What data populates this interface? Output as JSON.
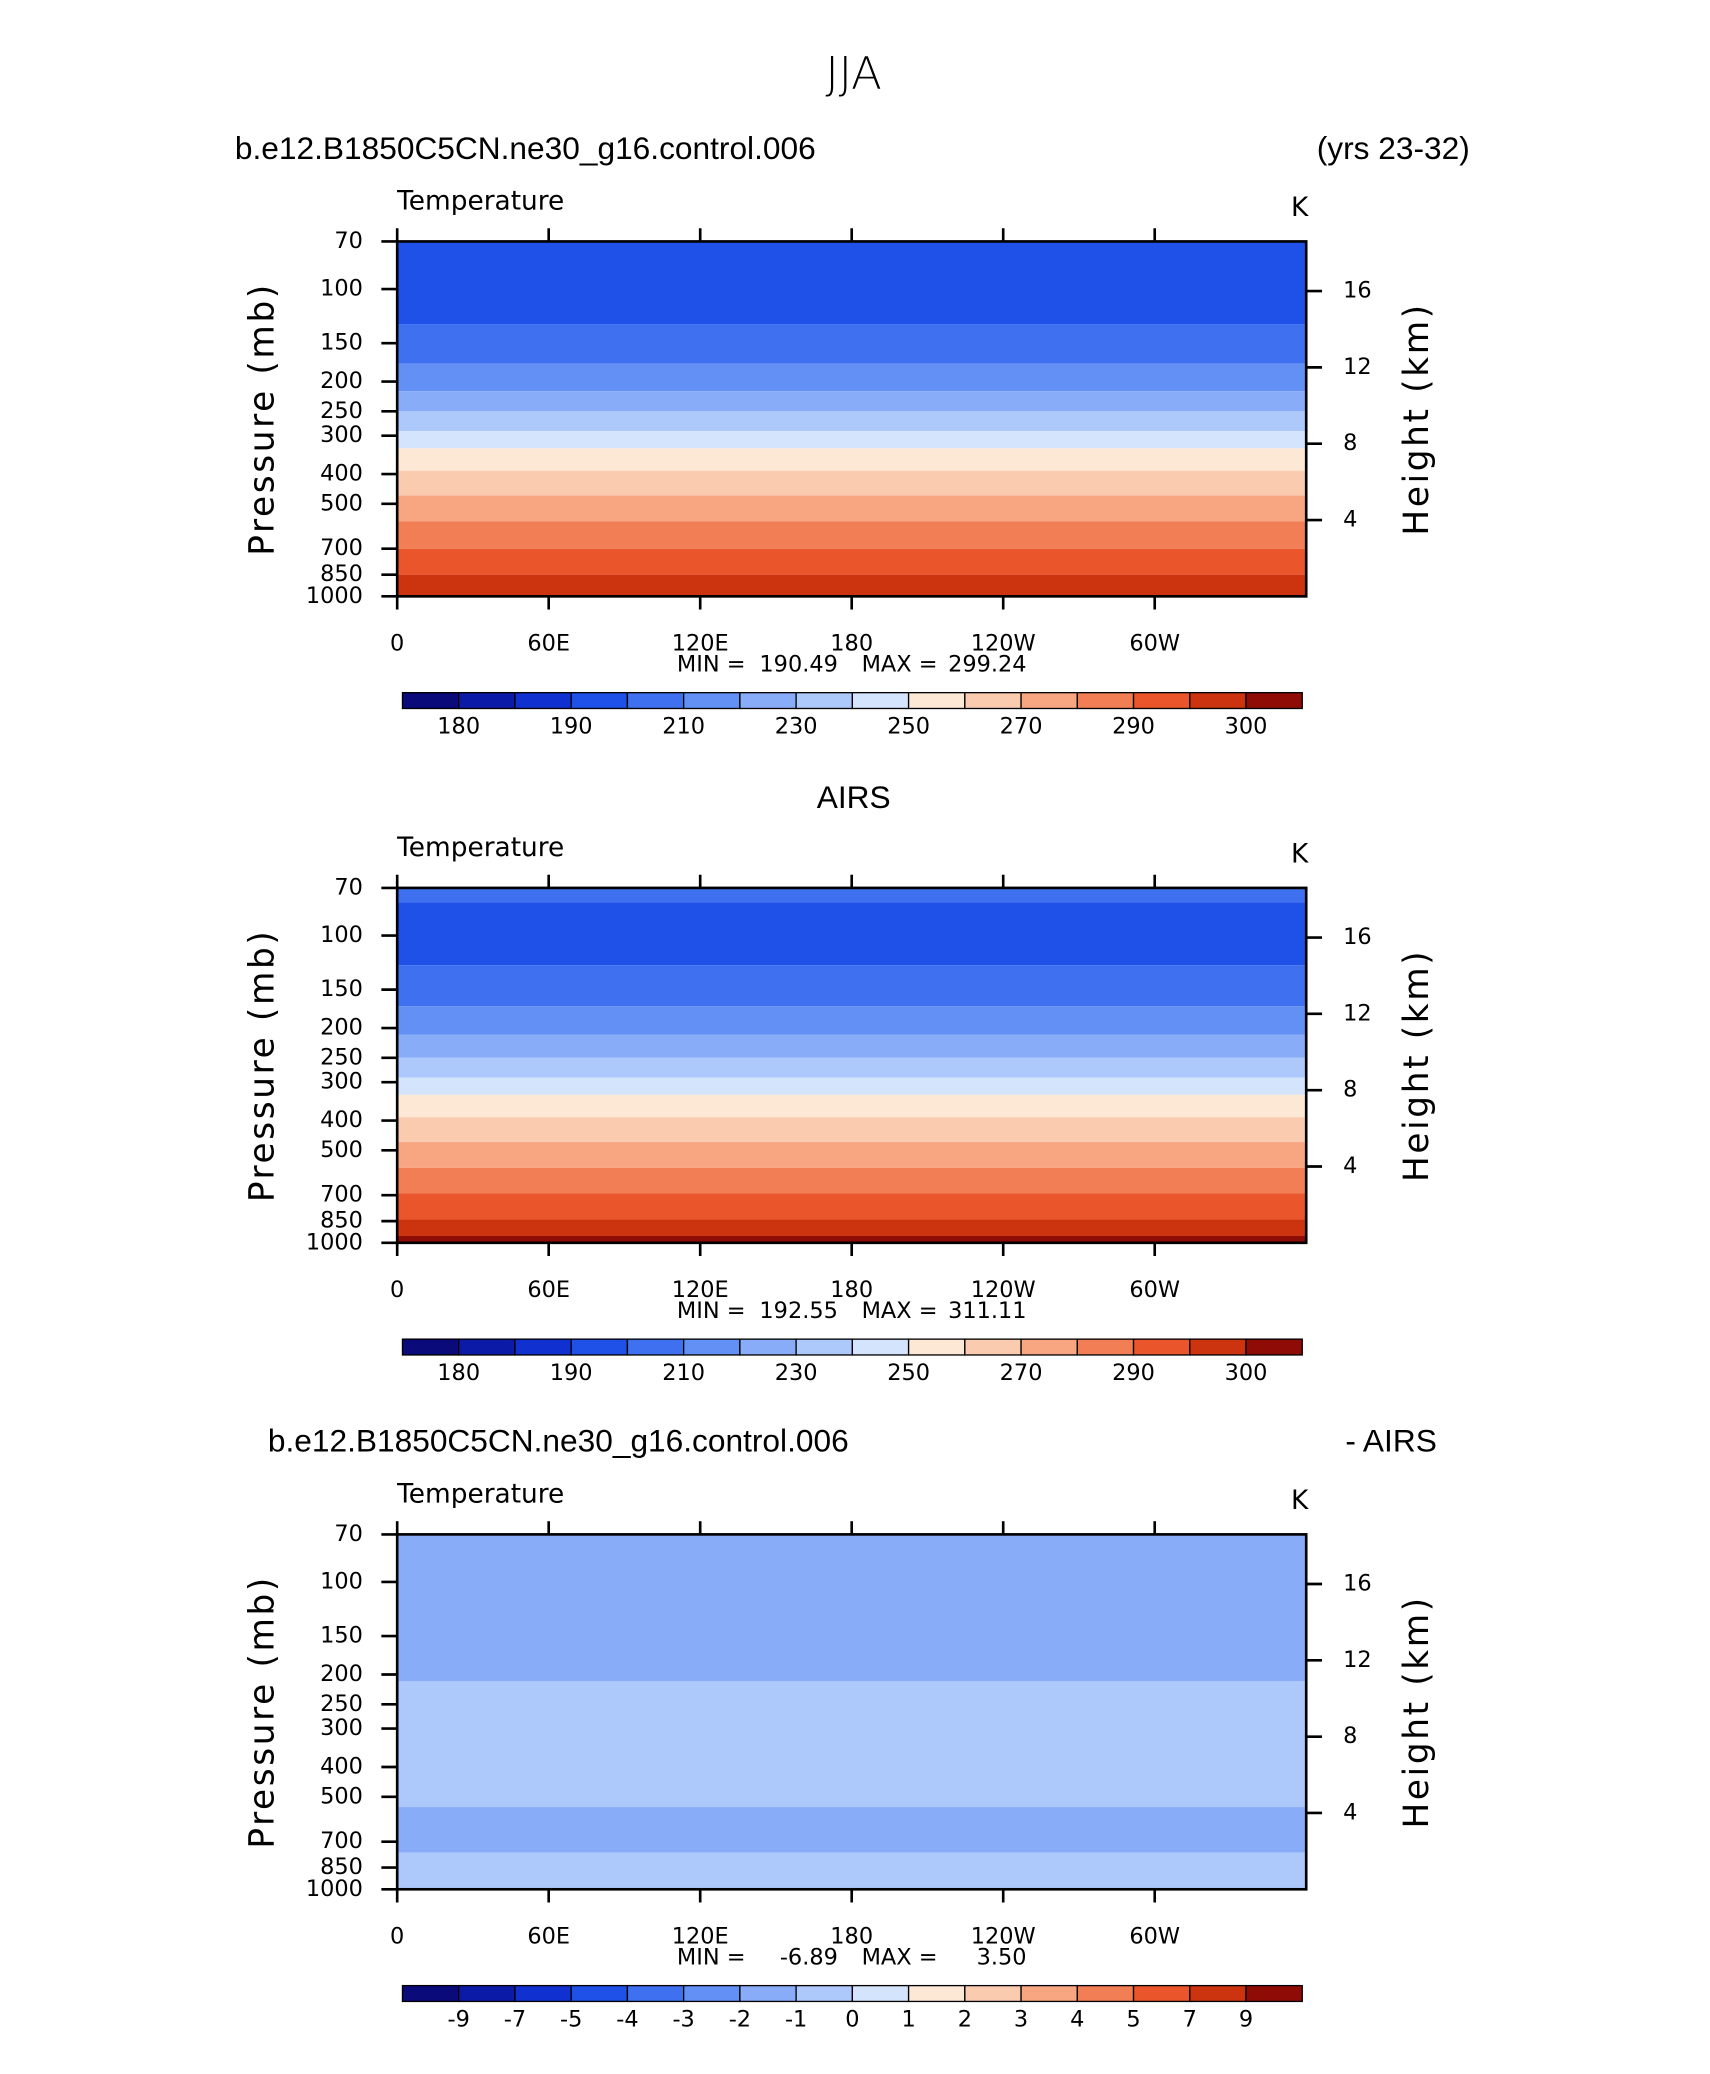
{
  "title": "JJA",
  "chart_data": [
    {
      "type": "contour",
      "title_left": "b.e12.B1850C5CN.ne30_g16.control.006",
      "title_right": "(yrs 23-32)",
      "subtitle": "Temperature",
      "units": "K",
      "ylabel": "Pressure (mb)",
      "y2label": "Height (km)",
      "xlim": [
        0,
        360
      ],
      "xticks": [
        0,
        {
          "value": 60,
          "label": "60E"
        },
        {
          "value": 120,
          "label": "120E"
        },
        180,
        {
          "value": 240,
          "label": "120W"
        },
        {
          "value": 300,
          "label": "60W"
        }
      ],
      "ylim": [
        1000,
        70
      ],
      "log_y": true,
      "yticks": [
        70,
        100,
        150,
        200,
        250,
        300,
        400,
        500,
        700,
        850,
        1000
      ],
      "y2lim": [
        0,
        18.6
      ],
      "y2ticks": [
        4,
        8,
        12,
        16
      ],
      "stats": {
        "min_text": "MIN =",
        "min": 190.49,
        "max_text": "MAX =",
        "max": 299.24
      },
      "field": {
        "pressure_bounds": [
          70,
          130,
          175,
          215,
          250,
          290,
          330,
          390,
          470,
          570,
          700,
          850,
          1000
        ],
        "values": [
          195,
          205,
          215,
          225,
          235,
          245,
          255,
          265,
          275,
          285,
          292,
          297
        ]
      },
      "colorbar": {
        "levels": [
          180,
          185,
          190,
          200,
          210,
          220,
          230,
          240,
          250,
          260,
          270,
          280,
          290,
          295,
          300
        ],
        "label_step": 2,
        "colors": [
          "#0a0a7a",
          "#0c1aa8",
          "#1030d0",
          "#1f50e8",
          "#3f70f0",
          "#6390f5",
          "#88acf8",
          "#adc8fa",
          "#d4e4fc",
          "#fde8d6",
          "#fbcbb0",
          "#f8a682",
          "#f27e55",
          "#ea552b",
          "#cc3410",
          "#8f0c06"
        ]
      }
    },
    {
      "type": "contour",
      "title": "AIRS",
      "subtitle": "Temperature",
      "units": "K",
      "ylabel": "Pressure (mb)",
      "y2label": "Height (km)",
      "xlim": [
        0,
        360
      ],
      "xticks": [
        0,
        {
          "value": 60,
          "label": "60E"
        },
        {
          "value": 120,
          "label": "120E"
        },
        180,
        {
          "value": 240,
          "label": "120W"
        },
        {
          "value": 300,
          "label": "60W"
        }
      ],
      "ylim": [
        1000,
        70
      ],
      "log_y": true,
      "yticks": [
        70,
        100,
        150,
        200,
        250,
        300,
        400,
        500,
        700,
        850,
        1000
      ],
      "y2lim": [
        0,
        18.6
      ],
      "y2ticks": [
        4,
        8,
        12,
        16
      ],
      "stats": {
        "min_text": "MIN =",
        "min": 192.55,
        "max_text": "MAX =",
        "max": 311.11
      },
      "field": {
        "pressure_bounds": [
          70,
          78,
          125,
          170,
          210,
          250,
          290,
          330,
          390,
          470,
          570,
          690,
          840,
          950,
          1000
        ],
        "values": [
          205,
          195,
          205,
          215,
          225,
          235,
          245,
          255,
          265,
          275,
          285,
          292,
          297,
          302
        ]
      },
      "colorbar": {
        "levels": [
          180,
          185,
          190,
          200,
          210,
          220,
          230,
          240,
          250,
          260,
          270,
          280,
          290,
          295,
          300
        ],
        "label_step": 2,
        "colors": [
          "#0a0a7a",
          "#0c1aa8",
          "#1030d0",
          "#1f50e8",
          "#3f70f0",
          "#6390f5",
          "#88acf8",
          "#adc8fa",
          "#d4e4fc",
          "#fde8d6",
          "#fbcbb0",
          "#f8a682",
          "#f27e55",
          "#ea552b",
          "#cc3410",
          "#8f0c06"
        ]
      }
    },
    {
      "type": "contour",
      "title_left": "b.e12.B1850C5CN.ne30_g16.control.006",
      "title_right": "- AIRS",
      "subtitle": "Temperature",
      "units": "K",
      "ylabel": "Pressure (mb)",
      "y2label": "Height (km)",
      "xlim": [
        0,
        360
      ],
      "xticks": [
        0,
        {
          "value": 60,
          "label": "60E"
        },
        {
          "value": 120,
          "label": "120E"
        },
        180,
        {
          "value": 240,
          "label": "120W"
        },
        {
          "value": 300,
          "label": "60W"
        }
      ],
      "ylim": [
        1000,
        70
      ],
      "log_y": true,
      "yticks": [
        70,
        100,
        150,
        200,
        250,
        300,
        400,
        500,
        700,
        850,
        1000
      ],
      "y2lim": [
        0,
        18.6
      ],
      "y2ticks": [
        4,
        8,
        12,
        16
      ],
      "stats": {
        "min_text": "MIN =",
        "min": -6.89,
        "max_text": "MAX =",
        "max": {
          "value": 3.5,
          "label": "3.50"
        }
      },
      "field": {
        "pressure_bounds": [
          70,
          210,
          540,
          760,
          1000
        ],
        "values": [
          -1.5,
          -0.5,
          -1.5,
          -0.5
        ]
      },
      "colorbar": {
        "levels": [
          -9,
          -7,
          -5,
          -4,
          -3,
          -2,
          -1,
          0,
          1,
          2,
          3,
          4,
          5,
          7,
          9
        ],
        "label_step": 1,
        "colors": [
          "#0a0a7a",
          "#0c1aa8",
          "#1030d0",
          "#1f50e8",
          "#3f70f0",
          "#6390f5",
          "#88acf8",
          "#adc8fa",
          "#d4e4fc",
          "#fde8d6",
          "#fbcbb0",
          "#f8a682",
          "#f27e55",
          "#ea552b",
          "#cc3410",
          "#8f0c06"
        ]
      }
    }
  ]
}
